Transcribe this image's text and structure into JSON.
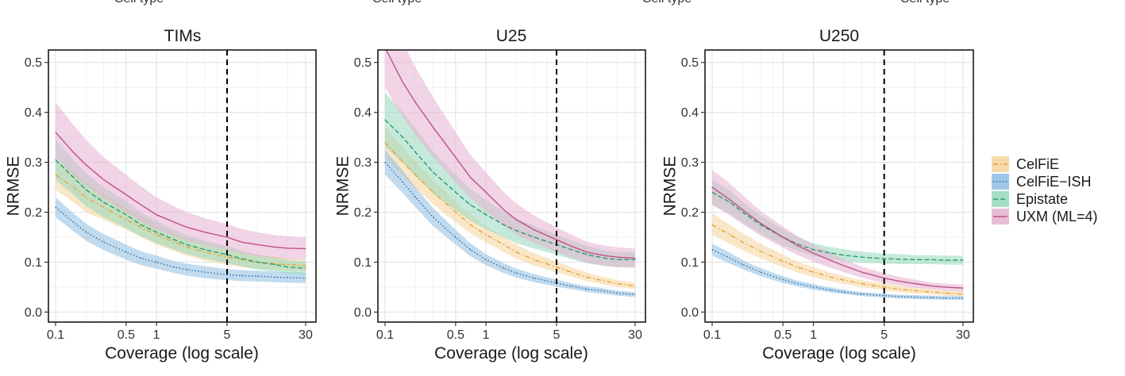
{
  "figure": {
    "clipped_top_labels": [
      "Cell type",
      "Cell type",
      "Cell type",
      "Cell type"
    ]
  },
  "legend": {
    "entries": [
      {
        "name": "CelFiE",
        "color": "#e8a33b",
        "fill": "#f5d49a",
        "dash": "dotdash"
      },
      {
        "name": "CelFiE−ISH",
        "color": "#2c6fa8",
        "fill": "#8fbde0",
        "dash": "dotted"
      },
      {
        "name": "Epistate",
        "color": "#2e9a6a",
        "fill": "#96d8bd",
        "dash": "dashed"
      },
      {
        "name": "UXM (ML=4)",
        "color": "#c0508a",
        "fill": "#e6b1d0",
        "dash": "solid"
      }
    ]
  },
  "chart_data": [
    {
      "type": "line",
      "title": "TIMs",
      "xlabel": "Coverage (log scale)",
      "ylabel": "NRMSE",
      "x_scale": "log",
      "xlim": [
        0.085,
        38
      ],
      "ylim": [
        -0.02,
        0.525
      ],
      "x_ticks": [
        0.1,
        0.5,
        1,
        5,
        30
      ],
      "x_tick_labels": [
        "0.1",
        "0.5",
        "1",
        "5",
        "30"
      ],
      "y_ticks": [
        0.0,
        0.1,
        0.2,
        0.3,
        0.4,
        0.5
      ],
      "y_tick_labels": [
        "0.0",
        "0.1",
        "0.2",
        "0.3",
        "0.4",
        "0.5"
      ],
      "vline_x": 5,
      "grid": true,
      "x": [
        0.1,
        0.15,
        0.2,
        0.3,
        0.5,
        0.7,
        1,
        1.5,
        2,
        3,
        5,
        7,
        10,
        15,
        20,
        30
      ],
      "series": [
        {
          "name": "CelFiE",
          "values": [
            0.275,
            0.25,
            0.23,
            0.21,
            0.185,
            0.17,
            0.155,
            0.14,
            0.13,
            0.12,
            0.11,
            0.105,
            0.1,
            0.097,
            0.095,
            0.093
          ],
          "lower": [
            0.245,
            0.22,
            0.2,
            0.185,
            0.165,
            0.15,
            0.135,
            0.122,
            0.113,
            0.103,
            0.095,
            0.09,
            0.087,
            0.084,
            0.083,
            0.082
          ],
          "upper": [
            0.305,
            0.28,
            0.258,
            0.238,
            0.208,
            0.192,
            0.175,
            0.158,
            0.147,
            0.137,
            0.126,
            0.12,
            0.114,
            0.111,
            0.108,
            0.105
          ]
        },
        {
          "name": "CelFiE−ISH",
          "values": [
            0.21,
            0.18,
            0.16,
            0.14,
            0.12,
            0.108,
            0.1,
            0.09,
            0.085,
            0.08,
            0.075,
            0.073,
            0.072,
            0.07,
            0.069,
            0.068
          ],
          "lower": [
            0.19,
            0.162,
            0.143,
            0.124,
            0.105,
            0.094,
            0.087,
            0.078,
            0.073,
            0.068,
            0.064,
            0.062,
            0.061,
            0.06,
            0.059,
            0.058
          ],
          "upper": [
            0.23,
            0.198,
            0.177,
            0.156,
            0.135,
            0.122,
            0.113,
            0.102,
            0.097,
            0.092,
            0.086,
            0.084,
            0.083,
            0.081,
            0.08,
            0.079
          ]
        },
        {
          "name": "Epistate",
          "values": [
            0.305,
            0.27,
            0.245,
            0.22,
            0.195,
            0.175,
            0.16,
            0.145,
            0.135,
            0.125,
            0.115,
            0.107,
            0.1,
            0.095,
            0.09,
            0.088
          ],
          "lower": [
            0.265,
            0.235,
            0.212,
            0.19,
            0.168,
            0.152,
            0.138,
            0.125,
            0.116,
            0.107,
            0.098,
            0.091,
            0.085,
            0.081,
            0.077,
            0.075
          ],
          "upper": [
            0.345,
            0.305,
            0.278,
            0.25,
            0.222,
            0.2,
            0.182,
            0.165,
            0.154,
            0.143,
            0.132,
            0.123,
            0.115,
            0.109,
            0.104,
            0.101
          ]
        },
        {
          "name": "UXM (ML=4)",
          "values": [
            0.36,
            0.32,
            0.295,
            0.265,
            0.235,
            0.215,
            0.195,
            0.18,
            0.17,
            0.16,
            0.15,
            0.14,
            0.135,
            0.13,
            0.128,
            0.127
          ],
          "lower": [
            0.31,
            0.275,
            0.255,
            0.228,
            0.2,
            0.182,
            0.165,
            0.152,
            0.143,
            0.134,
            0.125,
            0.117,
            0.112,
            0.108,
            0.106,
            0.105
          ],
          "upper": [
            0.42,
            0.375,
            0.345,
            0.31,
            0.275,
            0.252,
            0.23,
            0.212,
            0.2,
            0.188,
            0.176,
            0.166,
            0.16,
            0.154,
            0.152,
            0.15
          ]
        }
      ]
    },
    {
      "type": "line",
      "title": "U25",
      "xlabel": "Coverage (log scale)",
      "ylabel": "NRMSE",
      "x_scale": "log",
      "xlim": [
        0.085,
        38
      ],
      "ylim": [
        -0.02,
        0.525
      ],
      "x_ticks": [
        0.1,
        0.5,
        1,
        5,
        30
      ],
      "x_tick_labels": [
        "0.1",
        "0.5",
        "1",
        "5",
        "30"
      ],
      "y_ticks": [
        0.0,
        0.1,
        0.2,
        0.3,
        0.4,
        0.5
      ],
      "y_tick_labels": [
        "0.0",
        "0.1",
        "0.2",
        "0.3",
        "0.4",
        "0.5"
      ],
      "vline_x": 5,
      "grid": true,
      "x": [
        0.1,
        0.15,
        0.2,
        0.3,
        0.5,
        0.7,
        1,
        1.5,
        2,
        3,
        5,
        7,
        10,
        15,
        20,
        30
      ],
      "series": [
        {
          "name": "CelFiE",
          "values": [
            0.34,
            0.3,
            0.275,
            0.24,
            0.2,
            0.175,
            0.155,
            0.135,
            0.12,
            0.105,
            0.09,
            0.08,
            0.07,
            0.062,
            0.057,
            0.052
          ],
          "lower": [
            0.31,
            0.272,
            0.248,
            0.216,
            0.18,
            0.158,
            0.139,
            0.12,
            0.107,
            0.093,
            0.08,
            0.071,
            0.062,
            0.055,
            0.05,
            0.046
          ],
          "upper": [
            0.37,
            0.33,
            0.302,
            0.265,
            0.222,
            0.195,
            0.172,
            0.15,
            0.135,
            0.118,
            0.101,
            0.09,
            0.079,
            0.07,
            0.064,
            0.059
          ]
        },
        {
          "name": "CelFiE−ISH",
          "values": [
            0.3,
            0.26,
            0.23,
            0.19,
            0.15,
            0.125,
            0.105,
            0.088,
            0.078,
            0.068,
            0.058,
            0.052,
            0.046,
            0.042,
            0.038,
            0.035
          ],
          "lower": [
            0.275,
            0.238,
            0.21,
            0.172,
            0.135,
            0.112,
            0.094,
            0.078,
            0.069,
            0.06,
            0.051,
            0.046,
            0.04,
            0.036,
            0.033,
            0.03
          ],
          "upper": [
            0.325,
            0.283,
            0.25,
            0.208,
            0.165,
            0.138,
            0.116,
            0.098,
            0.087,
            0.076,
            0.065,
            0.058,
            0.052,
            0.047,
            0.043,
            0.04
          ]
        },
        {
          "name": "Epistate",
          "values": [
            0.385,
            0.35,
            0.32,
            0.28,
            0.24,
            0.215,
            0.195,
            0.175,
            0.163,
            0.15,
            0.135,
            0.125,
            0.115,
            0.108,
            0.105,
            0.105
          ],
          "lower": [
            0.33,
            0.3,
            0.272,
            0.238,
            0.204,
            0.183,
            0.166,
            0.149,
            0.138,
            0.127,
            0.115,
            0.106,
            0.098,
            0.092,
            0.09,
            0.09
          ],
          "upper": [
            0.44,
            0.4,
            0.368,
            0.322,
            0.276,
            0.247,
            0.224,
            0.201,
            0.188,
            0.173,
            0.155,
            0.144,
            0.132,
            0.124,
            0.12,
            0.12
          ]
        },
        {
          "name": "UXM (ML=4)",
          "values": [
            0.53,
            0.46,
            0.42,
            0.37,
            0.31,
            0.27,
            0.24,
            0.205,
            0.185,
            0.165,
            0.145,
            0.132,
            0.12,
            0.113,
            0.11,
            0.108
          ],
          "lower": [
            0.45,
            0.39,
            0.355,
            0.31,
            0.26,
            0.228,
            0.202,
            0.172,
            0.155,
            0.138,
            0.12,
            0.109,
            0.099,
            0.093,
            0.09,
            0.089
          ],
          "upper": [
            0.6,
            0.54,
            0.49,
            0.43,
            0.36,
            0.315,
            0.28,
            0.24,
            0.217,
            0.193,
            0.17,
            0.155,
            0.141,
            0.133,
            0.13,
            0.127
          ]
        }
      ]
    },
    {
      "type": "line",
      "title": "U250",
      "xlabel": "Coverage (log scale)",
      "ylabel": "NRMSE",
      "x_scale": "log",
      "xlim": [
        0.085,
        38
      ],
      "ylim": [
        -0.02,
        0.525
      ],
      "x_ticks": [
        0.1,
        0.5,
        1,
        5,
        30
      ],
      "x_tick_labels": [
        "0.1",
        "0.5",
        "1",
        "5",
        "30"
      ],
      "y_ticks": [
        0.0,
        0.1,
        0.2,
        0.3,
        0.4,
        0.5
      ],
      "y_tick_labels": [
        "0.0",
        "0.1",
        "0.2",
        "0.3",
        "0.4",
        "0.5"
      ],
      "vline_x": 5,
      "grid": true,
      "x": [
        0.1,
        0.15,
        0.2,
        0.3,
        0.5,
        0.7,
        1,
        1.5,
        2,
        3,
        5,
        7,
        10,
        15,
        20,
        30
      ],
      "series": [
        {
          "name": "CelFiE",
          "values": [
            0.175,
            0.155,
            0.14,
            0.122,
            0.102,
            0.09,
            0.08,
            0.07,
            0.064,
            0.057,
            0.05,
            0.046,
            0.043,
            0.04,
            0.038,
            0.036
          ],
          "lower": [
            0.155,
            0.137,
            0.124,
            0.108,
            0.09,
            0.079,
            0.07,
            0.061,
            0.056,
            0.05,
            0.044,
            0.04,
            0.037,
            0.035,
            0.033,
            0.031
          ],
          "upper": [
            0.198,
            0.175,
            0.158,
            0.137,
            0.115,
            0.101,
            0.09,
            0.079,
            0.072,
            0.064,
            0.057,
            0.052,
            0.049,
            0.045,
            0.043,
            0.041
          ]
        },
        {
          "name": "CelFiE−ISH",
          "values": [
            0.125,
            0.108,
            0.095,
            0.08,
            0.065,
            0.057,
            0.05,
            0.044,
            0.04,
            0.036,
            0.033,
            0.031,
            0.03,
            0.029,
            0.028,
            0.028
          ],
          "lower": [
            0.113,
            0.097,
            0.086,
            0.072,
            0.058,
            0.051,
            0.045,
            0.039,
            0.036,
            0.032,
            0.029,
            0.027,
            0.026,
            0.025,
            0.025,
            0.024
          ],
          "upper": [
            0.137,
            0.119,
            0.104,
            0.088,
            0.072,
            0.063,
            0.056,
            0.049,
            0.045,
            0.04,
            0.037,
            0.035,
            0.034,
            0.033,
            0.032,
            0.032
          ]
        },
        {
          "name": "Epistate",
          "values": [
            0.24,
            0.22,
            0.2,
            0.175,
            0.15,
            0.136,
            0.125,
            0.118,
            0.114,
            0.11,
            0.107,
            0.106,
            0.105,
            0.105,
            0.104,
            0.104
          ],
          "lower": [
            0.215,
            0.197,
            0.179,
            0.157,
            0.134,
            0.122,
            0.112,
            0.106,
            0.102,
            0.099,
            0.097,
            0.096,
            0.096,
            0.096,
            0.095,
            0.095
          ],
          "upper": [
            0.265,
            0.243,
            0.221,
            0.193,
            0.166,
            0.15,
            0.138,
            0.13,
            0.126,
            0.121,
            0.117,
            0.116,
            0.114,
            0.114,
            0.113,
            0.113
          ]
        },
        {
          "name": "UXM (ML=4)",
          "values": [
            0.25,
            0.225,
            0.205,
            0.178,
            0.15,
            0.133,
            0.118,
            0.103,
            0.093,
            0.08,
            0.068,
            0.062,
            0.057,
            0.052,
            0.05,
            0.048
          ],
          "lower": [
            0.215,
            0.193,
            0.176,
            0.153,
            0.129,
            0.114,
            0.101,
            0.088,
            0.08,
            0.069,
            0.058,
            0.053,
            0.049,
            0.045,
            0.043,
            0.041
          ],
          "upper": [
            0.285,
            0.257,
            0.234,
            0.203,
            0.171,
            0.152,
            0.135,
            0.118,
            0.106,
            0.091,
            0.078,
            0.071,
            0.065,
            0.059,
            0.057,
            0.055
          ]
        }
      ]
    }
  ]
}
